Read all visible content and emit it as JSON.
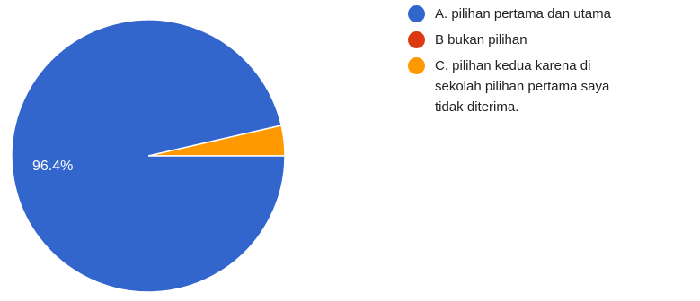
{
  "chart_data": {
    "type": "pie",
    "title": "",
    "legend_position": "right",
    "series": [
      {
        "values": [
          96.4,
          0,
          3.6
        ],
        "colors": [
          "#3366CC",
          "#DC3912",
          "#FF9900"
        ]
      }
    ],
    "slices": [
      {
        "label": "A. pilihan pertama dan utama",
        "value": 96.4,
        "color": "#3366CC",
        "data_label": "96.4%"
      },
      {
        "label": "B bukan pilihan",
        "value": 0,
        "color": "#DC3912",
        "data_label": ""
      },
      {
        "label": "C. pilihan kedua karena di sekolah pilihan pertama saya tidak diterima.",
        "value": 3.6,
        "color": "#FF9900",
        "data_label": ""
      }
    ],
    "legend": {
      "items": [
        {
          "lines": [
            "A. pilihan pertama dan utama"
          ],
          "color": "#3366CC"
        },
        {
          "lines": [
            "B bukan pilihan"
          ],
          "color": "#DC3912"
        },
        {
          "lines": [
            "C. pilihan kedua karena di",
            "sekolah pilihan pertama saya",
            "tidak diterima."
          ],
          "color": "#FF9900"
        }
      ]
    }
  }
}
